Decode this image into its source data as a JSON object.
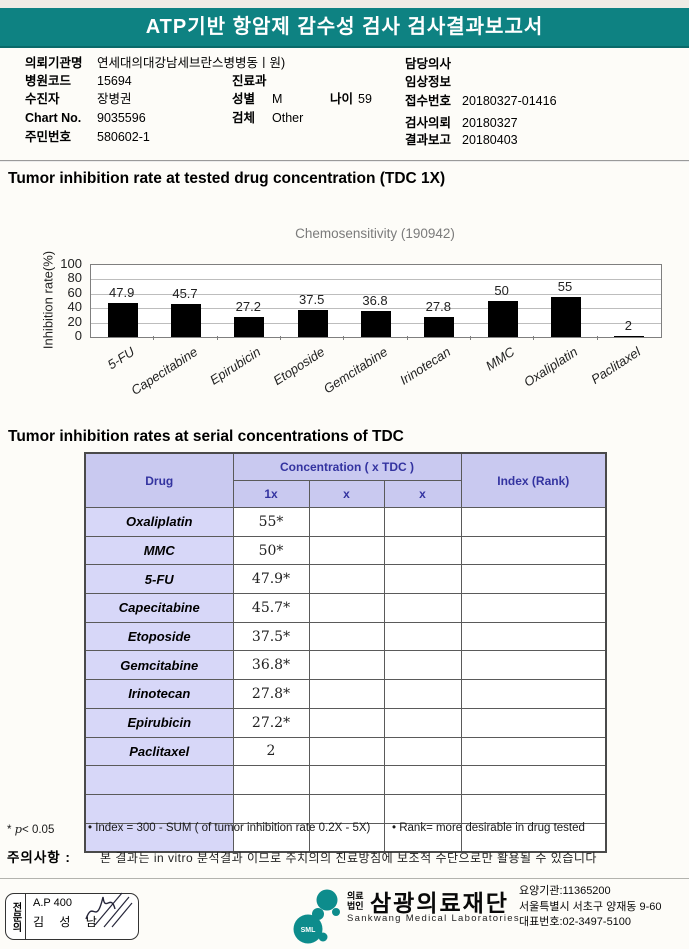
{
  "colors": {
    "banner": "#0e8282",
    "table_header_bg": "#c9c9f0",
    "table_drug_bg": "#d7d7f8",
    "table_header_text": "#3333a0",
    "logo_teal": "#0d8c8c",
    "bar": "#000000"
  },
  "header": {
    "title": "ATP기반 항암제 감수성 검사 검사결과보고서"
  },
  "patient": {
    "left": [
      {
        "label": "의뢰기관명",
        "value": "연세대의대강남세브란스병병동ㅣ원)"
      },
      {
        "label": "병원코드",
        "value": "15694"
      },
      {
        "label": "수진자",
        "value": "장병권"
      },
      {
        "label": "Chart No.",
        "value": "9035596"
      },
      {
        "label": "주민번호",
        "value": "580602-1"
      }
    ],
    "mid": {
      "dept_label": "진료과",
      "dept_value": "",
      "sex_label": "성별",
      "sex_value": "M",
      "age_label": "나이",
      "age_value": "59",
      "specimen_label": "검체",
      "specimen_value": "Other"
    },
    "right": [
      {
        "label": "담당의사",
        "value": ""
      },
      {
        "label": "임상정보",
        "value": ""
      },
      {
        "label": "접수번호",
        "value": "20180327-01416"
      },
      {
        "label": "검사의뢰",
        "value": "20180327"
      },
      {
        "label": "결과보고",
        "value": "20180403"
      }
    ]
  },
  "section1_title": "Tumor inhibition rate at tested drug concentration (TDC 1X)",
  "chart_data": {
    "type": "bar",
    "title": "Chemosensitivity (190942)",
    "ylabel": "Inhibition rate(%)",
    "xlabel": "",
    "categories": [
      "5-FU",
      "Capecitabine",
      "Epirubicin",
      "Etoposide",
      "Gemcitabine",
      "Irinotecan",
      "MMC",
      "Oxaliplatin",
      "Paclitaxel"
    ],
    "values": [
      47.9,
      45.7,
      27.2,
      37.5,
      36.8,
      27.8,
      50,
      55,
      2
    ],
    "ylim": [
      0,
      100
    ],
    "yticks": [
      0,
      20,
      40,
      60,
      80,
      100
    ],
    "grid": true,
    "legend": false,
    "bar_color": "#000000"
  },
  "table": {
    "title": "Tumor inhibition rates at serial concentrations of TDC",
    "header": {
      "drug": "Drug",
      "concentration": "Concentration ( x TDC )",
      "sub": [
        "1x",
        "x",
        "x"
      ],
      "index": "Index (Rank)"
    },
    "rows": [
      {
        "drug": "Oxaliplatin",
        "c1": "55*",
        "c2": "",
        "c3": "",
        "index": ""
      },
      {
        "drug": "MMC",
        "c1": "50*",
        "c2": "",
        "c3": "",
        "index": ""
      },
      {
        "drug": "5-FU",
        "c1": "47.9*",
        "c2": "",
        "c3": "",
        "index": ""
      },
      {
        "drug": "Capecitabine",
        "c1": "45.7*",
        "c2": "",
        "c3": "",
        "index": ""
      },
      {
        "drug": "Etoposide",
        "c1": "37.5*",
        "c2": "",
        "c3": "",
        "index": ""
      },
      {
        "drug": "Gemcitabine",
        "c1": "36.8*",
        "c2": "",
        "c3": "",
        "index": ""
      },
      {
        "drug": "Irinotecan",
        "c1": "27.8*",
        "c2": "",
        "c3": "",
        "index": ""
      },
      {
        "drug": "Epirubicin",
        "c1": "27.2*",
        "c2": "",
        "c3": "",
        "index": ""
      },
      {
        "drug": "Paclitaxel",
        "c1": "2",
        "c2": "",
        "c3": "",
        "index": ""
      }
    ],
    "empty_rows": 3
  },
  "footnotes": {
    "sig_prefix": "* ",
    "sig_p": "p",
    "sig_rest": "< 0.05",
    "index_note": "• Index = 300 - SUM ( of tumor inhibition rate 0.2X  -  5X)",
    "rank_note": "• Rank= more desirable in drug tested",
    "caution_label": "주의사항 :",
    "caution_text": "본 결과는 in vitro 분석결과 이므로 주치의의 진료방침에 보조적 수단으로만 활용될 수 있습니다"
  },
  "footer": {
    "stamp": {
      "side_label": "전문의",
      "line1": "A.P 400",
      "line2": "김 성 남"
    },
    "lab": {
      "logo_text": "SML",
      "org_line1": "의료",
      "org_line2": "법인",
      "name": "삼광의료재단",
      "name_en": "Sankwang Medical Laboratories"
    },
    "contact": {
      "line1": "요양기관:11365200",
      "line2": "서울특별시 서초구 양재동 9-60",
      "line3": "대표번호:02-3497-5100"
    }
  }
}
